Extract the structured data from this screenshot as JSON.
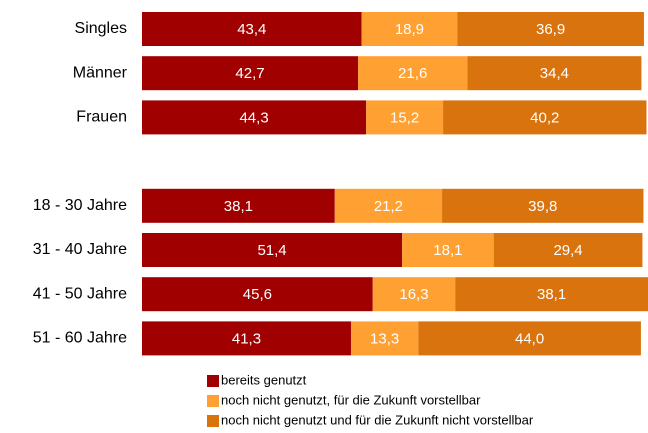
{
  "chart_data": {
    "type": "stacked-bar-horizontal",
    "categories": [
      "Singles",
      "Männer",
      "Frauen",
      null,
      "18 - 30 Jahre",
      "31 - 40 Jahre",
      "41 - 50 Jahre",
      "51 - 60 Jahre"
    ],
    "series": [
      {
        "name": "bereits genutzt",
        "color": "#a00000",
        "values": [
          43.4,
          42.7,
          44.3,
          null,
          38.1,
          51.4,
          45.6,
          41.3
        ],
        "value_labels": [
          "43,4",
          "42,7",
          "44,3",
          null,
          "38,1",
          "51,4",
          "45,6",
          "41,3"
        ]
      },
      {
        "name": "noch nicht genutzt, für die Zukunft vorstellbar",
        "color": "#ffa033",
        "values": [
          18.9,
          21.6,
          15.2,
          null,
          21.2,
          18.1,
          16.3,
          13.3
        ],
        "value_labels": [
          "18,9",
          "21,6",
          "15,2",
          null,
          "21,2",
          "18,1",
          "16,3",
          "13,3"
        ]
      },
      {
        "name": "noch nicht genutzt und für die Zukunft nicht vorstellbar",
        "color": "#d9730d",
        "values": [
          36.9,
          34.4,
          40.2,
          null,
          39.8,
          29.4,
          38.1,
          44.0
        ],
        "value_labels": [
          "36,9",
          "34,4",
          "40,2",
          null,
          "39,8",
          "29,4",
          "38,1",
          "44,0"
        ]
      }
    ]
  }
}
